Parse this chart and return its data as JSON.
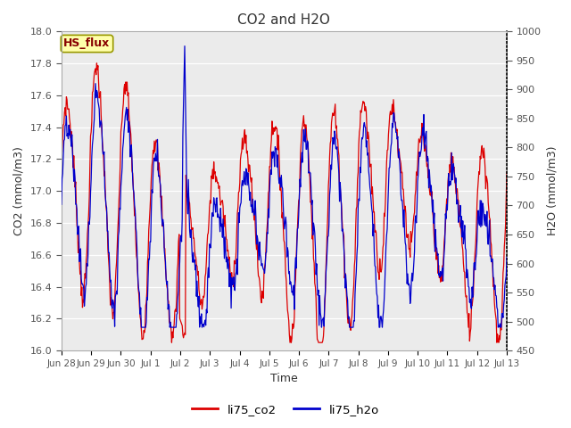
{
  "title": "CO2 and H2O",
  "xlabel": "Time",
  "ylabel_left": "CO2 (mmol/m3)",
  "ylabel_right": "H2O (mmol/m3)",
  "ylim_left": [
    16.0,
    18.0
  ],
  "ylim_right": [
    450,
    1000
  ],
  "background_color": "#ffffff",
  "plot_bg_color": "#ebebeb",
  "legend_entries": [
    "li75_co2",
    "li75_h2o"
  ],
  "legend_colors": [
    "#dd0000",
    "#0000cc"
  ],
  "hs_flux_label": "HS_flux",
  "hs_flux_bg": "#ffffaa",
  "hs_flux_border": "#999900",
  "hs_flux_color": "#880000",
  "grid_color": "#ffffff",
  "yticks_left": [
    16.0,
    16.2,
    16.4,
    16.6,
    16.8,
    17.0,
    17.2,
    17.4,
    17.6,
    17.8,
    18.0
  ],
  "yticks_right": [
    450,
    500,
    550,
    600,
    650,
    700,
    750,
    800,
    850,
    900,
    950,
    1000
  ]
}
